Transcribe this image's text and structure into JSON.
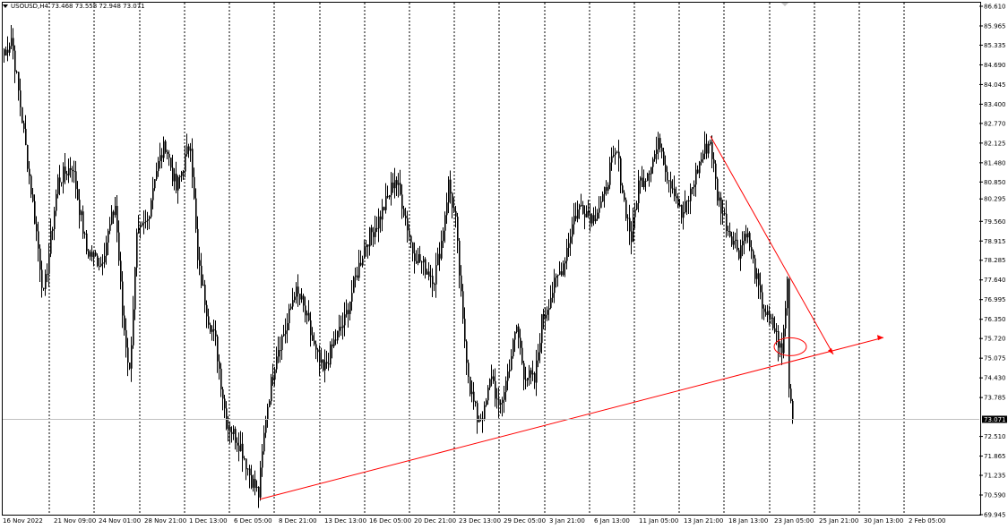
{
  "header": {
    "symbol": "USOUSD,H4",
    "ohlc": "73.468 73.558 72.948 73.071"
  },
  "current_price_label": "73.071",
  "colors": {
    "background": "#ffffff",
    "candles": "#000000",
    "grid": "#000000",
    "annotation": "#ff0000",
    "price_line": "#c0c0c0"
  },
  "chart_data": {
    "type": "candlestick",
    "symbol": "USOUSD",
    "timeframe": "H4",
    "last_price": 73.071,
    "ylim": [
      69.945,
      86.61
    ],
    "y_ticks": [
      "86.610",
      "85.965",
      "85.335",
      "84.690",
      "84.045",
      "83.400",
      "82.770",
      "82.125",
      "81.480",
      "80.850",
      "80.295",
      "79.560",
      "78.915",
      "78.285",
      "77.640",
      "76.995",
      "76.350",
      "75.720",
      "75.075",
      "74.430",
      "73.785",
      "73.071",
      "72.510",
      "71.865",
      "71.235",
      "70.590",
      "69.945"
    ],
    "x_ticks": [
      "16 Nov 2022",
      "21 Nov 09:00",
      "24 Nov 01:00",
      "28 Nov 21:00",
      "1 Dec 13:00",
      "6 Dec 05:00",
      "8 Dec 21:00",
      "13 Dec 13:00",
      "16 Dec 05:00",
      "20 Dec 21:00",
      "23 Dec 13:00",
      "29 Dec 05:00",
      "3 Jan 21:00",
      "6 Jan 13:00",
      "11 Jan 05:00",
      "13 Jan 21:00",
      "18 Jan 13:00",
      "23 Jan 05:00",
      "25 Jan 21:00",
      "30 Jan 13:00",
      "2 Feb 05:00"
    ],
    "grid": "vertical dotted",
    "anchors": [
      [
        0,
        85.0
      ],
      [
        4,
        85.6
      ],
      [
        10,
        82.9
      ],
      [
        18,
        79.2
      ],
      [
        22,
        77.1
      ],
      [
        30,
        80.9
      ],
      [
        38,
        81.4
      ],
      [
        46,
        78.6
      ],
      [
        54,
        78.2
      ],
      [
        62,
        80.1
      ],
      [
        66,
        76.5
      ],
      [
        70,
        74.6
      ],
      [
        74,
        79.0
      ],
      [
        80,
        79.6
      ],
      [
        84,
        81.1
      ],
      [
        90,
        82.1
      ],
      [
        96,
        80.6
      ],
      [
        104,
        82.2
      ],
      [
        108,
        78.2
      ],
      [
        114,
        76.4
      ],
      [
        118,
        75.6
      ],
      [
        124,
        73.0
      ],
      [
        132,
        72.2
      ],
      [
        138,
        71.1
      ],
      [
        142,
        70.6
      ],
      [
        146,
        73.2
      ],
      [
        152,
        75.3
      ],
      [
        158,
        76.2
      ],
      [
        162,
        77.3
      ],
      [
        166,
        76.9
      ],
      [
        170,
        76.1
      ],
      [
        174,
        75.2
      ],
      [
        178,
        74.6
      ],
      [
        184,
        75.6
      ],
      [
        190,
        76.3
      ],
      [
        196,
        77.7
      ],
      [
        202,
        78.9
      ],
      [
        208,
        79.5
      ],
      [
        214,
        80.3
      ],
      [
        218,
        81.0
      ],
      [
        222,
        80.2
      ],
      [
        228,
        78.6
      ],
      [
        234,
        78.1
      ],
      [
        240,
        77.7
      ],
      [
        244,
        78.9
      ],
      [
        248,
        80.8
      ],
      [
        252,
        79.5
      ],
      [
        256,
        76.2
      ],
      [
        260,
        74.1
      ],
      [
        264,
        73.1
      ],
      [
        268,
        73.3
      ],
      [
        272,
        74.6
      ],
      [
        276,
        73.3
      ],
      [
        280,
        74.3
      ],
      [
        286,
        76.1
      ],
      [
        290,
        74.6
      ],
      [
        296,
        74.3
      ],
      [
        300,
        76.3
      ],
      [
        306,
        77.3
      ],
      [
        312,
        78.2
      ],
      [
        318,
        79.7
      ],
      [
        322,
        80.1
      ],
      [
        328,
        79.7
      ],
      [
        334,
        80.2
      ],
      [
        338,
        81.3
      ],
      [
        342,
        81.8
      ],
      [
        346,
        80.2
      ],
      [
        350,
        79.0
      ],
      [
        354,
        80.8
      ],
      [
        358,
        81.1
      ],
      [
        362,
        81.6
      ],
      [
        366,
        82.2
      ],
      [
        370,
        81.1
      ],
      [
        374,
        80.6
      ],
      [
        378,
        79.7
      ],
      [
        382,
        80.3
      ],
      [
        386,
        81.1
      ],
      [
        390,
        81.8
      ],
      [
        394,
        82.2
      ],
      [
        398,
        80.4
      ],
      [
        404,
        79.3
      ],
      [
        410,
        78.6
      ],
      [
        414,
        79.3
      ],
      [
        418,
        78.2
      ],
      [
        422,
        77.0
      ],
      [
        426,
        76.4
      ],
      [
        430,
        76.0
      ],
      [
        434,
        75.2
      ],
      [
        437,
        77.6
      ],
      [
        438,
        74.3
      ],
      [
        440,
        73.1
      ]
    ]
  },
  "annotations": {
    "trendline_support": "rising support line from Dec low",
    "trendline_resistance": "falling line from late Jan high",
    "ellipse": "breakdown highlight"
  }
}
